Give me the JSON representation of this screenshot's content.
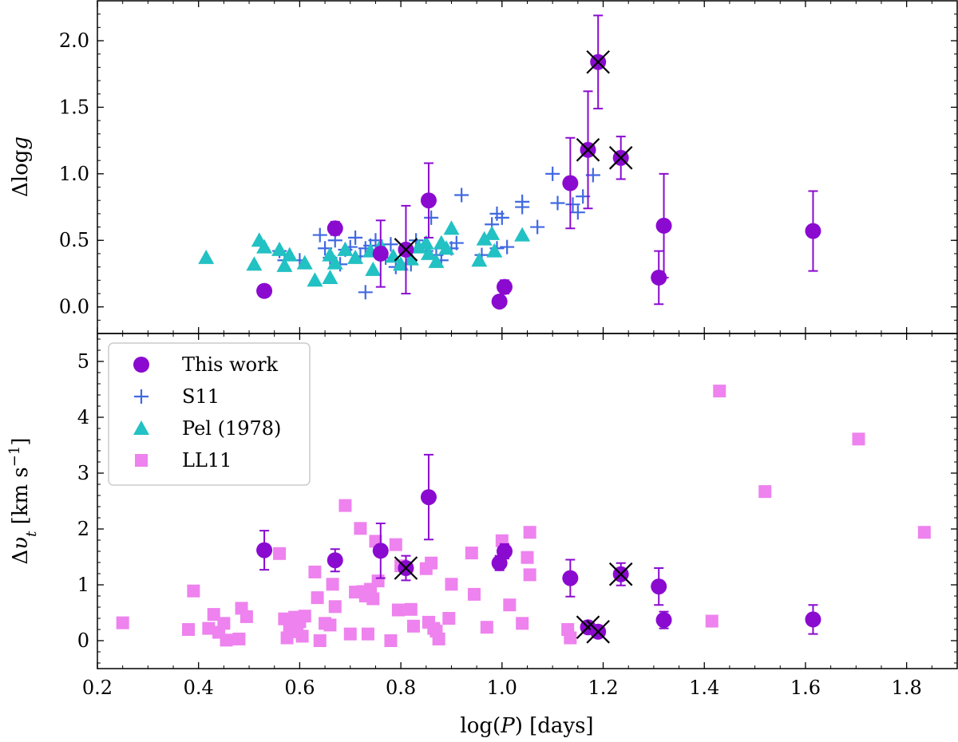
{
  "colors": {
    "this_work": "#8b0ad0",
    "s11": "#4169e1",
    "pel": "#22c1c3",
    "ll11": "#ee82ee",
    "cross": "#000000"
  },
  "labels": {
    "xlabel": "log(P) [days]",
    "top_ylabel": "Δlog g",
    "bottom_ylabel": "Δυ_t [km s⁻¹]"
  },
  "legend": {
    "placement": "upper-left of bottom panel",
    "entries": [
      {
        "name": "This work",
        "marker": "circle",
        "color": "#8b0ad0"
      },
      {
        "name": "S11",
        "marker": "plus",
        "color": "#4169e1"
      },
      {
        "name": "Pel (1978)",
        "marker": "triangle",
        "color": "#22c1c3"
      },
      {
        "name": "LL11",
        "marker": "square",
        "color": "#ee82ee"
      }
    ]
  },
  "chart_data": [
    {
      "type": "scatter",
      "panel": "top",
      "xlabel": "log(P) [days]",
      "ylabel": "Δlog g",
      "xlim": [
        0.2,
        1.9
      ],
      "ylim": [
        -0.2,
        2.3
      ],
      "xticks": [
        "0.2",
        "0.4",
        "0.6",
        "0.8",
        "1.0",
        "1.2",
        "1.4",
        "1.6",
        "1.8"
      ],
      "yticks": [
        "0.0",
        "0.5",
        "1.0",
        "1.5",
        "2.0"
      ],
      "grid": false,
      "series": [
        {
          "name": "This work",
          "marker": "circle",
          "points": [
            {
              "x": 0.53,
              "y": 0.12,
              "err": 0.02
            },
            {
              "x": 0.67,
              "y": 0.59,
              "err": 0.05
            },
            {
              "x": 0.76,
              "y": 0.4,
              "err": 0.25
            },
            {
              "x": 0.81,
              "y": 0.43,
              "err": 0.33,
              "flagged": true
            },
            {
              "x": 0.855,
              "y": 0.8,
              "err": 0.28
            },
            {
              "x": 0.995,
              "y": 0.04,
              "err": 0.03
            },
            {
              "x": 1.005,
              "y": 0.15,
              "err": 0.05
            },
            {
              "x": 1.135,
              "y": 0.93,
              "err": 0.34
            },
            {
              "x": 1.17,
              "y": 1.18,
              "err": 0.44,
              "flagged": true
            },
            {
              "x": 1.19,
              "y": 1.84,
              "err": 0.35,
              "flagged": true
            },
            {
              "x": 1.235,
              "y": 1.12,
              "err": 0.16,
              "flagged": true
            },
            {
              "x": 1.31,
              "y": 0.22,
              "err": 0.2
            },
            {
              "x": 1.32,
              "y": 0.61,
              "err": 0.39
            },
            {
              "x": 1.615,
              "y": 0.57,
              "err": 0.3
            }
          ]
        },
        {
          "name": "S11",
          "marker": "plus",
          "points": [
            {
              "x": 0.56,
              "y": 0.42
            },
            {
              "x": 0.57,
              "y": 0.35
            },
            {
              "x": 0.6,
              "y": 0.35
            },
            {
              "x": 0.64,
              "y": 0.54
            },
            {
              "x": 0.65,
              "y": 0.44
            },
            {
              "x": 0.66,
              "y": 0.37
            },
            {
              "x": 0.67,
              "y": 0.5
            },
            {
              "x": 0.68,
              "y": 0.32
            },
            {
              "x": 0.69,
              "y": 0.43
            },
            {
              "x": 0.7,
              "y": 0.45
            },
            {
              "x": 0.71,
              "y": 0.52
            },
            {
              "x": 0.72,
              "y": 0.38
            },
            {
              "x": 0.73,
              "y": 0.44
            },
            {
              "x": 0.73,
              "y": 0.11
            },
            {
              "x": 0.74,
              "y": 0.46
            },
            {
              "x": 0.75,
              "y": 0.5
            },
            {
              "x": 0.77,
              "y": 0.37
            },
            {
              "x": 0.78,
              "y": 0.47
            },
            {
              "x": 0.79,
              "y": 0.3
            },
            {
              "x": 0.82,
              "y": 0.32
            },
            {
              "x": 0.83,
              "y": 0.5
            },
            {
              "x": 0.85,
              "y": 0.42
            },
            {
              "x": 0.86,
              "y": 0.67
            },
            {
              "x": 0.87,
              "y": 0.39
            },
            {
              "x": 0.88,
              "y": 0.35
            },
            {
              "x": 0.9,
              "y": 0.44
            },
            {
              "x": 0.91,
              "y": 0.48
            },
            {
              "x": 0.92,
              "y": 0.84
            },
            {
              "x": 0.96,
              "y": 0.39
            },
            {
              "x": 0.98,
              "y": 0.62
            },
            {
              "x": 0.99,
              "y": 0.7
            },
            {
              "x": 0.99,
              "y": 0.44
            },
            {
              "x": 1.0,
              "y": 0.67
            },
            {
              "x": 1.01,
              "y": 0.45
            },
            {
              "x": 1.04,
              "y": 0.75
            },
            {
              "x": 1.04,
              "y": 0.79
            },
            {
              "x": 1.07,
              "y": 0.6
            },
            {
              "x": 1.1,
              "y": 1.0
            },
            {
              "x": 1.11,
              "y": 0.78
            },
            {
              "x": 1.14,
              "y": 0.77
            },
            {
              "x": 1.15,
              "y": 0.71
            },
            {
              "x": 1.16,
              "y": 0.83
            },
            {
              "x": 1.18,
              "y": 0.99
            }
          ]
        },
        {
          "name": "Pel (1978)",
          "marker": "triangle",
          "points": [
            {
              "x": 0.415,
              "y": 0.37
            },
            {
              "x": 0.51,
              "y": 0.32
            },
            {
              "x": 0.52,
              "y": 0.5
            },
            {
              "x": 0.53,
              "y": 0.45
            },
            {
              "x": 0.56,
              "y": 0.43
            },
            {
              "x": 0.57,
              "y": 0.31
            },
            {
              "x": 0.58,
              "y": 0.39
            },
            {
              "x": 0.61,
              "y": 0.33
            },
            {
              "x": 0.63,
              "y": 0.2
            },
            {
              "x": 0.66,
              "y": 0.22
            },
            {
              "x": 0.66,
              "y": 0.39
            },
            {
              "x": 0.67,
              "y": 0.33
            },
            {
              "x": 0.69,
              "y": 0.43
            },
            {
              "x": 0.71,
              "y": 0.37
            },
            {
              "x": 0.74,
              "y": 0.42
            },
            {
              "x": 0.745,
              "y": 0.28
            },
            {
              "x": 0.76,
              "y": 0.46
            },
            {
              "x": 0.785,
              "y": 0.38
            },
            {
              "x": 0.8,
              "y": 0.32
            },
            {
              "x": 0.82,
              "y": 0.36
            },
            {
              "x": 0.835,
              "y": 0.45
            },
            {
              "x": 0.85,
              "y": 0.48
            },
            {
              "x": 0.855,
              "y": 0.4
            },
            {
              "x": 0.87,
              "y": 0.34
            },
            {
              "x": 0.88,
              "y": 0.48
            },
            {
              "x": 0.89,
              "y": 0.44
            },
            {
              "x": 0.9,
              "y": 0.59
            },
            {
              "x": 0.955,
              "y": 0.35
            },
            {
              "x": 0.965,
              "y": 0.51
            },
            {
              "x": 0.98,
              "y": 0.55
            },
            {
              "x": 0.985,
              "y": 0.42
            },
            {
              "x": 1.04,
              "y": 0.54
            }
          ]
        }
      ],
      "flag_marker": "black X over flagged points"
    },
    {
      "type": "scatter",
      "panel": "bottom",
      "xlabel": "log(P) [days]",
      "ylabel": "Δυ_t [km s⁻¹]",
      "xlim": [
        0.2,
        1.9
      ],
      "ylim": [
        -0.5,
        5.5
      ],
      "xticks": [
        "0.2",
        "0.4",
        "0.6",
        "0.8",
        "1.0",
        "1.2",
        "1.4",
        "1.6",
        "1.8"
      ],
      "yticks": [
        "0",
        "1",
        "2",
        "3",
        "4",
        "5"
      ],
      "grid": false,
      "series": [
        {
          "name": "This work",
          "marker": "circle",
          "points": [
            {
              "x": 0.53,
              "y": 1.62,
              "err": 0.35
            },
            {
              "x": 0.67,
              "y": 1.44,
              "err": 0.2
            },
            {
              "x": 0.76,
              "y": 1.61,
              "err": 0.49
            },
            {
              "x": 0.81,
              "y": 1.3,
              "err": 0.22,
              "flagged": true
            },
            {
              "x": 0.855,
              "y": 2.57,
              "err": 0.76
            },
            {
              "x": 0.995,
              "y": 1.39,
              "err": 0.13
            },
            {
              "x": 1.005,
              "y": 1.6,
              "err": 0.13
            },
            {
              "x": 1.135,
              "y": 1.12,
              "err": 0.33
            },
            {
              "x": 1.17,
              "y": 0.24,
              "err": 0.1,
              "flagged": true
            },
            {
              "x": 1.19,
              "y": 0.16,
              "err": 0.08,
              "flagged": true
            },
            {
              "x": 1.235,
              "y": 1.19,
              "err": 0.2,
              "flagged": true
            },
            {
              "x": 1.31,
              "y": 0.97,
              "err": 0.33
            },
            {
              "x": 1.32,
              "y": 0.37,
              "err": 0.15
            },
            {
              "x": 1.615,
              "y": 0.38,
              "err": 0.26
            }
          ]
        },
        {
          "name": "LL11",
          "marker": "square",
          "points": [
            {
              "x": 0.25,
              "y": 0.32
            },
            {
              "x": 0.38,
              "y": 0.2
            },
            {
              "x": 0.39,
              "y": 0.89
            },
            {
              "x": 0.42,
              "y": 0.22
            },
            {
              "x": 0.43,
              "y": 0.47
            },
            {
              "x": 0.44,
              "y": 0.15
            },
            {
              "x": 0.45,
              "y": 0.31
            },
            {
              "x": 0.455,
              "y": 0.01
            },
            {
              "x": 0.48,
              "y": 0.03
            },
            {
              "x": 0.485,
              "y": 0.58
            },
            {
              "x": 0.495,
              "y": 0.43
            },
            {
              "x": 0.56,
              "y": 1.56
            },
            {
              "x": 0.57,
              "y": 0.39
            },
            {
              "x": 0.575,
              "y": 0.05
            },
            {
              "x": 0.58,
              "y": 0.25
            },
            {
              "x": 0.59,
              "y": 0.42
            },
            {
              "x": 0.595,
              "y": 0.16
            },
            {
              "x": 0.6,
              "y": 0.34
            },
            {
              "x": 0.605,
              "y": 0.08
            },
            {
              "x": 0.61,
              "y": 0.44
            },
            {
              "x": 0.63,
              "y": 1.23
            },
            {
              "x": 0.635,
              "y": 0.77
            },
            {
              "x": 0.64,
              "y": 0.0
            },
            {
              "x": 0.65,
              "y": 0.31
            },
            {
              "x": 0.66,
              "y": 0.28
            },
            {
              "x": 0.665,
              "y": 1.01
            },
            {
              "x": 0.67,
              "y": 0.61
            },
            {
              "x": 0.69,
              "y": 2.42
            },
            {
              "x": 0.7,
              "y": 0.12
            },
            {
              "x": 0.71,
              "y": 0.87
            },
            {
              "x": 0.72,
              "y": 2.01
            },
            {
              "x": 0.725,
              "y": 0.88
            },
            {
              "x": 0.73,
              "y": 0.8
            },
            {
              "x": 0.735,
              "y": 0.12
            },
            {
              "x": 0.74,
              "y": 0.92
            },
            {
              "x": 0.745,
              "y": 0.75
            },
            {
              "x": 0.75,
              "y": 1.78
            },
            {
              "x": 0.755,
              "y": 1.07
            },
            {
              "x": 0.78,
              "y": 0.0
            },
            {
              "x": 0.79,
              "y": 1.72
            },
            {
              "x": 0.795,
              "y": 0.55
            },
            {
              "x": 0.8,
              "y": 1.34
            },
            {
              "x": 0.82,
              "y": 0.56
            },
            {
              "x": 0.825,
              "y": 0.26
            },
            {
              "x": 0.85,
              "y": 1.29
            },
            {
              "x": 0.855,
              "y": 0.33
            },
            {
              "x": 0.86,
              "y": 1.39
            },
            {
              "x": 0.865,
              "y": 0.22
            },
            {
              "x": 0.87,
              "y": 0.17
            },
            {
              "x": 0.875,
              "y": 0.03
            },
            {
              "x": 0.895,
              "y": 0.4
            },
            {
              "x": 0.9,
              "y": 1.01
            },
            {
              "x": 0.94,
              "y": 1.57
            },
            {
              "x": 0.945,
              "y": 0.83
            },
            {
              "x": 0.97,
              "y": 0.24
            },
            {
              "x": 1.0,
              "y": 1.79
            },
            {
              "x": 1.015,
              "y": 0.64
            },
            {
              "x": 1.04,
              "y": 0.31
            },
            {
              "x": 1.05,
              "y": 1.49
            },
            {
              "x": 1.055,
              "y": 1.18
            },
            {
              "x": 1.055,
              "y": 1.94
            },
            {
              "x": 1.13,
              "y": 0.2
            },
            {
              "x": 1.135,
              "y": 0.05
            },
            {
              "x": 1.415,
              "y": 0.35
            },
            {
              "x": 1.43,
              "y": 4.47
            },
            {
              "x": 1.52,
              "y": 2.67
            },
            {
              "x": 1.705,
              "y": 3.61
            },
            {
              "x": 1.835,
              "y": 1.94
            }
          ]
        }
      ],
      "flag_marker": "black X over flagged points"
    }
  ]
}
